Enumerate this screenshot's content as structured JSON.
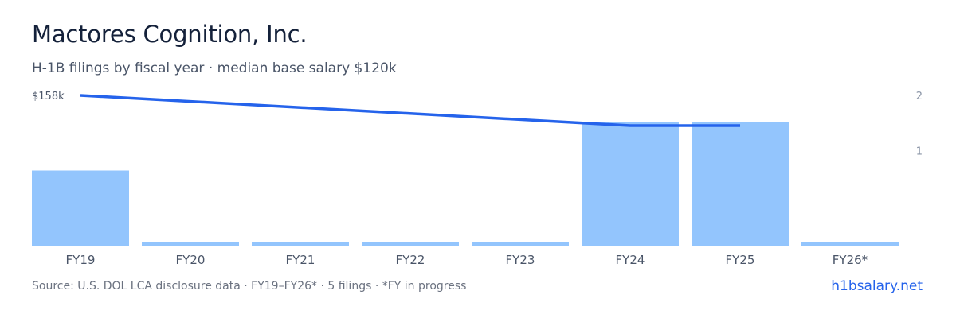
{
  "header": {
    "title": "Mactores Cognition, Inc.",
    "subtitle": "H-1B filings by fiscal year · median base salary $120k"
  },
  "footer": {
    "source": "Source: U.S. DOL LCA disclosure data · FY19–FY26* · 5 filings · *FY in progress",
    "brand": "h1bsalary.net"
  },
  "colors": {
    "bar": "#93c5fd",
    "line": "#2563eb",
    "baseline": "#d1d5db",
    "brand": "#2563eb"
  },
  "chart_data": {
    "type": "bar",
    "categories": [
      "FY19",
      "FY20",
      "FY21",
      "FY22",
      "FY23",
      "FY24",
      "FY25",
      "FY26*"
    ],
    "series": [
      {
        "type": "bar",
        "axis": "right",
        "values": [
          1,
          0,
          0,
          0,
          0,
          2,
          2,
          0
        ]
      },
      {
        "type": "line",
        "axis": "left",
        "values": [
          158000,
          null,
          null,
          null,
          null,
          131000,
          131000,
          null
        ]
      }
    ],
    "left_axis": {
      "label": "$158k",
      "label_value": 158000,
      "range": [
        0,
        158000
      ]
    },
    "right_axis": {
      "ticks": [
        "1",
        "2"
      ],
      "tick_values": [
        1,
        2
      ],
      "range": [
        0,
        2
      ]
    },
    "grid": false,
    "legend": "none"
  }
}
